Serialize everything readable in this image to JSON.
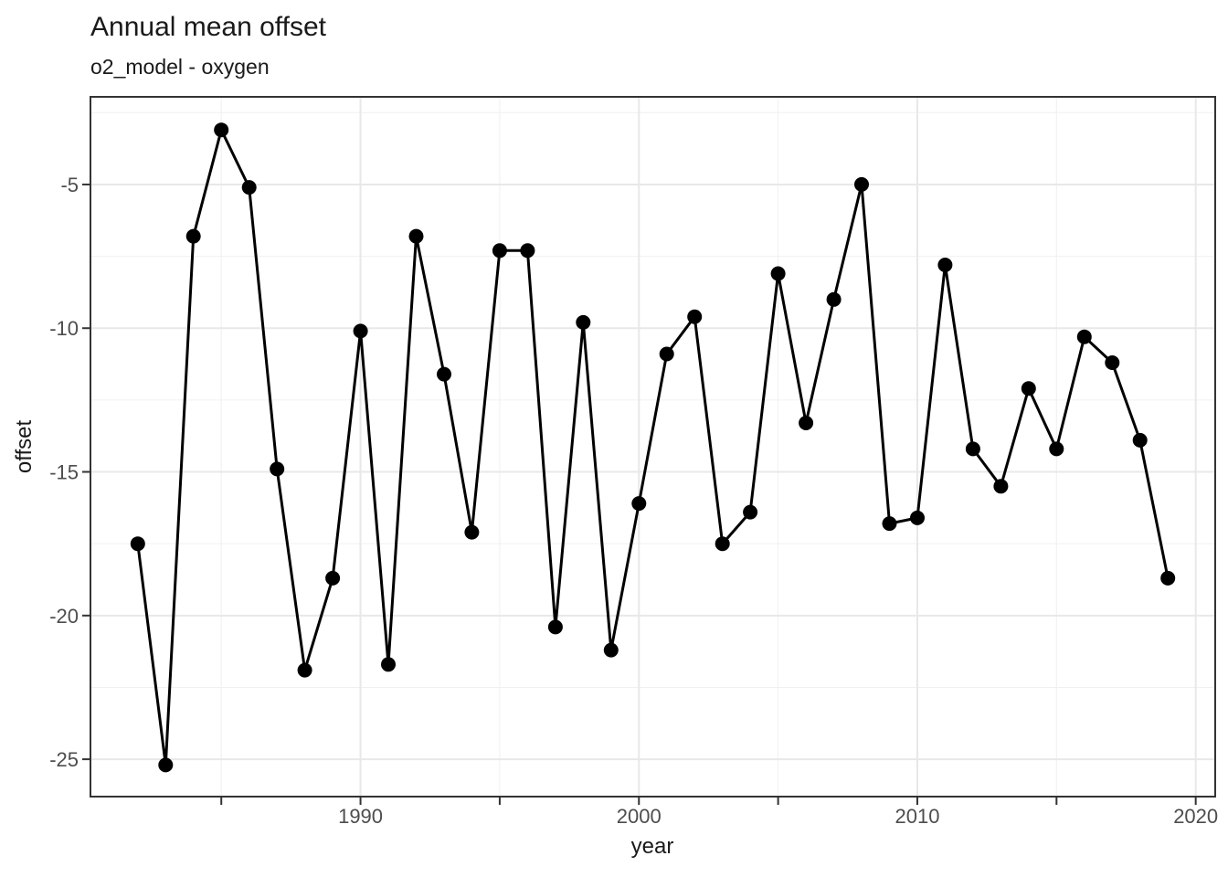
{
  "chart_data": {
    "type": "line",
    "title": "Annual mean offset",
    "subtitle": "o2_model - oxygen",
    "xlabel": "year",
    "ylabel": "offset",
    "x": [
      1982,
      1983,
      1984,
      1985,
      1986,
      1987,
      1988,
      1989,
      1990,
      1991,
      1992,
      1993,
      1994,
      1995,
      1996,
      1997,
      1998,
      1999,
      2000,
      2001,
      2002,
      2003,
      2004,
      2005,
      2006,
      2007,
      2008,
      2009,
      2010,
      2011,
      2012,
      2013,
      2014,
      2015,
      2016,
      2017,
      2018,
      2019
    ],
    "series": [
      {
        "name": "offset",
        "values": [
          -17.5,
          -25.2,
          -6.8,
          -3.1,
          -5.1,
          -14.9,
          -21.9,
          -18.7,
          -10.1,
          -21.7,
          -6.8,
          -11.6,
          -17.1,
          -7.3,
          -7.3,
          -20.4,
          -9.8,
          -21.2,
          -16.1,
          -10.9,
          -9.6,
          -17.5,
          -16.4,
          -8.1,
          -13.3,
          -9.0,
          -5.0,
          -16.8,
          -16.6,
          -7.8,
          -14.2,
          -15.5,
          -12.1,
          -14.2,
          -10.3,
          -11.2,
          -13.9,
          -18.7
        ]
      }
    ],
    "xlim": [
      1980.3,
      2020.7
    ],
    "ylim": [
      -26.3,
      -1.95
    ],
    "x_major_ticks": [
      1990,
      2000,
      2010,
      2020
    ],
    "x_minor_ticks": [
      1985,
      1995,
      2005,
      2015
    ],
    "y_major_ticks": [
      -5,
      -10,
      -15,
      -20,
      -25
    ],
    "y_minor_gridlines": [
      -2.5,
      -7.5,
      -12.5,
      -17.5,
      -22.5
    ],
    "grid": "on",
    "legend": "none",
    "colors": {
      "line": "#000000",
      "point": "#000000",
      "grid_major": "#e8e8e8",
      "grid_minor": "#f0f0f0",
      "panel_border": "#333333",
      "tick": "#333333",
      "tick_label": "#4d4d4d",
      "text": "#1a1a1a",
      "background": "#ffffff"
    }
  }
}
